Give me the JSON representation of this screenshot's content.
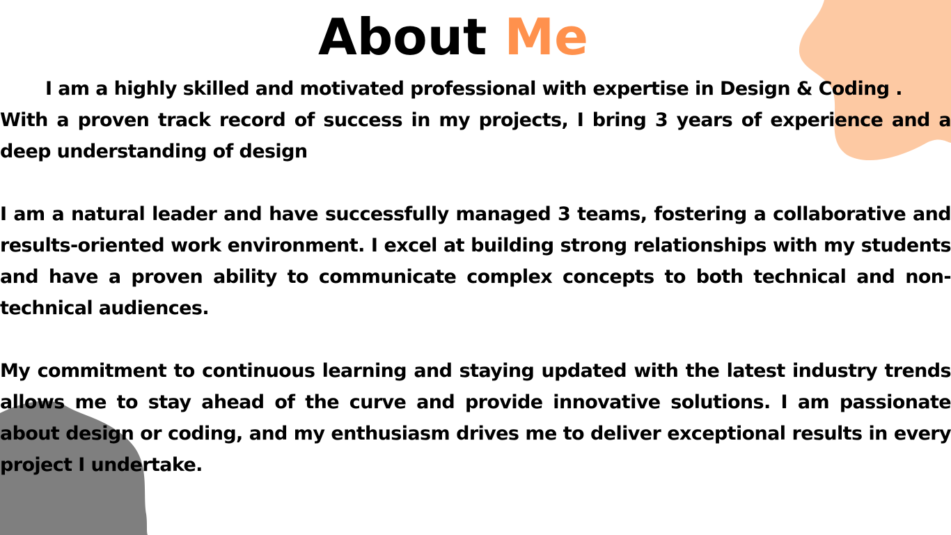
{
  "title": {
    "word1": "About",
    "word2": "Me"
  },
  "colors": {
    "accent": "#ff914d",
    "blob_orange": "#fdc9a3",
    "blob_gray": "#7f7f7f",
    "text": "#000000",
    "background": "#ffffff"
  },
  "paragraphs": {
    "p1_line1": "I am a highly skilled and motivated professional with expertise in Design & Coding .",
    "p1_rest": "With a proven track record of success in my projects, I bring 3 years of experience and a deep understanding of design",
    "p2": "I am a natural leader and have successfully managed 3 teams, fostering a collaborative and results-oriented work environment. I excel at building strong relationships with my students and have a proven ability to communicate complex concepts to both technical and non-technical audiences.",
    "p3": "My commitment to continuous learning and staying updated with the latest industry trends allows me to stay ahead of the curve and provide innovative solutions. I am passionate about design or coding, and my enthusiasm drives me to deliver exceptional results in every project I undertake."
  }
}
